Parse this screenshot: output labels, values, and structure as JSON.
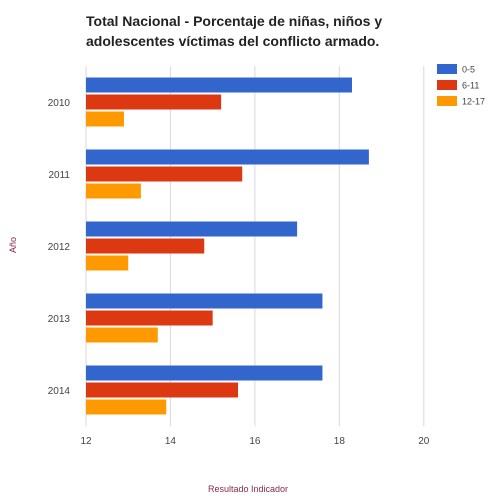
{
  "chart_data": {
    "type": "bar",
    "orientation": "horizontal",
    "title_lines": [
      "Total Nacional - Porcentaje de niñas, niños y",
      "adolescentes víctimas del conflicto armado."
    ],
    "xlabel": "Resultado Indicador",
    "ylabel": "Año",
    "categories": [
      "2010",
      "2011",
      "2012",
      "2013",
      "2014"
    ],
    "series": [
      {
        "name": "0-5",
        "color": "#3366cc",
        "values": [
          18.3,
          18.7,
          17.0,
          17.6,
          17.6
        ]
      },
      {
        "name": "6-11",
        "color": "#dc3912",
        "values": [
          15.2,
          15.7,
          14.8,
          15.0,
          15.6
        ]
      },
      {
        "name": "12-17",
        "color": "#ff9900",
        "values": [
          12.9,
          13.3,
          13.0,
          13.7,
          13.9
        ]
      }
    ],
    "xlim": [
      12,
      21
    ],
    "xticks": [
      12,
      14,
      16,
      18,
      20
    ],
    "grid": true,
    "legend_position": "right"
  }
}
